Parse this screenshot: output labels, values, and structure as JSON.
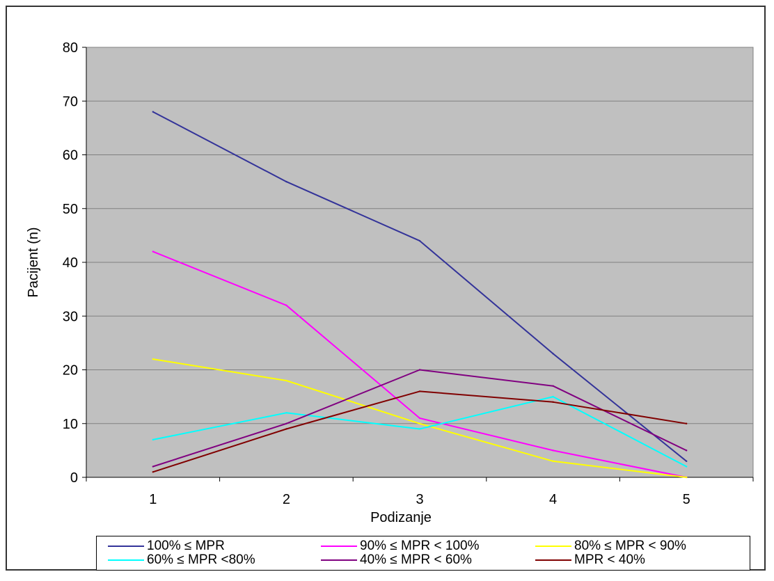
{
  "chart_data": {
    "type": "line",
    "xlabel": "Podizanje",
    "ylabel": "Pacijent (n)",
    "categories": [
      "1",
      "2",
      "3",
      "4",
      "5"
    ],
    "y_ticks": [
      "0",
      "10",
      "20",
      "30",
      "40",
      "50",
      "60",
      "70",
      "80"
    ],
    "ylim": [
      0,
      80
    ],
    "grid": true,
    "legend_position": "bottom",
    "plot_background": "#c0c0c0",
    "series": [
      {
        "name": "100% ≤ MPR",
        "color": "#333399",
        "values": [
          68,
          55,
          44,
          23,
          3
        ]
      },
      {
        "name": "90% ≤ MPR < 100%",
        "color": "#ff00ff",
        "values": [
          42,
          32,
          11,
          5,
          0
        ]
      },
      {
        "name": "80% ≤ MPR < 90%",
        "color": "#ffff00",
        "values": [
          22,
          18,
          10,
          3,
          0
        ]
      },
      {
        "name": "60% ≤ MPR <80%",
        "color": "#00ffff",
        "values": [
          7,
          12,
          9,
          15,
          2
        ]
      },
      {
        "name": "40% ≤ MPR < 60%",
        "color": "#800080",
        "values": [
          2,
          10,
          20,
          17,
          5
        ]
      },
      {
        "name": "MPR < 40%",
        "color": "#800000",
        "values": [
          1,
          9,
          16,
          14,
          10
        ]
      }
    ]
  }
}
